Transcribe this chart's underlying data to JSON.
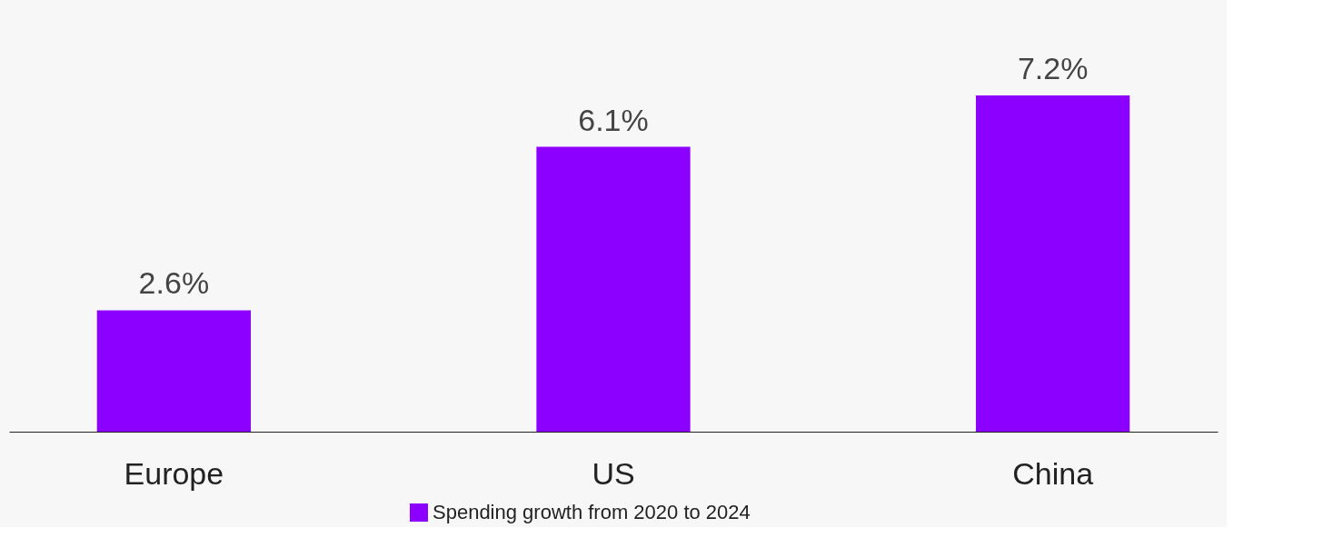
{
  "chart_data": {
    "type": "bar",
    "categories": [
      "Europe",
      "US",
      "China"
    ],
    "series": [
      {
        "name": "Spending growth from 2020 to 2024",
        "color": "#8c00ff",
        "values": [
          2.6,
          6.1,
          7.2
        ],
        "value_labels": [
          "2.6%",
          "6.1%",
          "7.2%"
        ]
      }
    ],
    "legend": "bottom"
  }
}
